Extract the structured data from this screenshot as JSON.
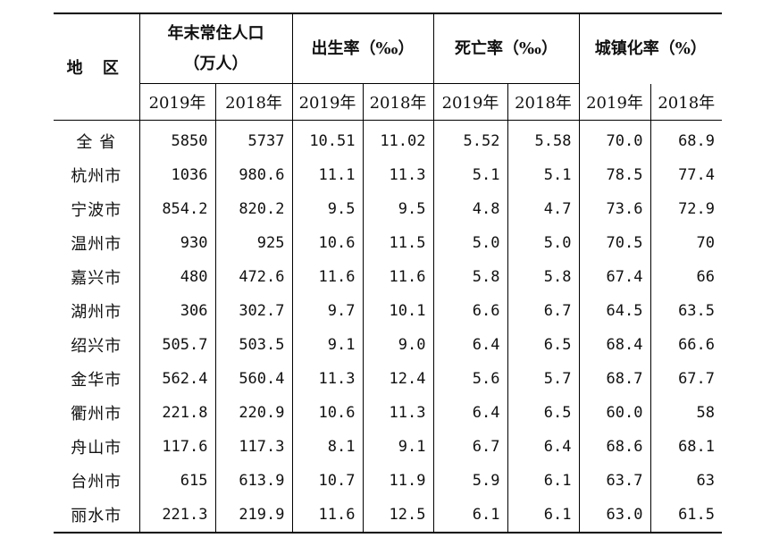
{
  "header": {
    "region": "地 区",
    "population_line1": "年末常住人口",
    "population_line2": "（万人）",
    "birth_rate": "出生率（‰）",
    "death_rate": "死亡率（‰）",
    "urbanization": "城镇化率（%）",
    "year_2019": "2019年",
    "year_2018": "2018年"
  },
  "rows": [
    {
      "region": "全  省",
      "pop2019": "5850",
      "pop2018": "5737",
      "birth2019": "10.51",
      "birth2018": "11.02",
      "death2019": "5.52",
      "death2018": "5.58",
      "urb2019": "70.0",
      "urb2018": "68.9"
    },
    {
      "region": "杭州市",
      "pop2019": "1036",
      "pop2018": "980.6",
      "birth2019": "11.1",
      "birth2018": "11.3",
      "death2019": "5.1",
      "death2018": "5.1",
      "urb2019": "78.5",
      "urb2018": "77.4"
    },
    {
      "region": "宁波市",
      "pop2019": "854.2",
      "pop2018": "820.2",
      "birth2019": "9.5",
      "birth2018": "9.5",
      "death2019": "4.8",
      "death2018": "4.7",
      "urb2019": "73.6",
      "urb2018": "72.9"
    },
    {
      "region": "温州市",
      "pop2019": "930",
      "pop2018": "925",
      "birth2019": "10.6",
      "birth2018": "11.5",
      "death2019": "5.0",
      "death2018": "5.0",
      "urb2019": "70.5",
      "urb2018": "70"
    },
    {
      "region": "嘉兴市",
      "pop2019": "480",
      "pop2018": "472.6",
      "birth2019": "11.6",
      "birth2018": "11.6",
      "death2019": "5.8",
      "death2018": "5.8",
      "urb2019": "67.4",
      "urb2018": "66"
    },
    {
      "region": "湖州市",
      "pop2019": "306",
      "pop2018": "302.7",
      "birth2019": "9.7",
      "birth2018": "10.1",
      "death2019": "6.6",
      "death2018": "6.7",
      "urb2019": "64.5",
      "urb2018": "63.5"
    },
    {
      "region": "绍兴市",
      "pop2019": "505.7",
      "pop2018": "503.5",
      "birth2019": "9.1",
      "birth2018": "9.0",
      "death2019": "6.4",
      "death2018": "6.5",
      "urb2019": "68.4",
      "urb2018": "66.6"
    },
    {
      "region": "金华市",
      "pop2019": "562.4",
      "pop2018": "560.4",
      "birth2019": "11.3",
      "birth2018": "12.4",
      "death2019": "5.6",
      "death2018": "5.7",
      "urb2019": "68.7",
      "urb2018": "67.7"
    },
    {
      "region": "衢州市",
      "pop2019": "221.8",
      "pop2018": "220.9",
      "birth2019": "10.6",
      "birth2018": "11.3",
      "death2019": "6.4",
      "death2018": "6.5",
      "urb2019": "60.0",
      "urb2018": "58"
    },
    {
      "region": "舟山市",
      "pop2019": "117.6",
      "pop2018": "117.3",
      "birth2019": "8.1",
      "birth2018": "9.1",
      "death2019": "6.7",
      "death2018": "6.4",
      "urb2019": "68.6",
      "urb2018": "68.1"
    },
    {
      "region": "台州市",
      "pop2019": "615",
      "pop2018": "613.9",
      "birth2019": "10.7",
      "birth2018": "11.9",
      "death2019": "5.9",
      "death2018": "6.1",
      "urb2019": "63.7",
      "urb2018": "63"
    },
    {
      "region": "丽水市",
      "pop2019": "221.3",
      "pop2018": "219.9",
      "birth2019": "11.6",
      "birth2018": "12.5",
      "death2019": "6.1",
      "death2018": "6.1",
      "urb2019": "63.0",
      "urb2018": "61.5"
    }
  ]
}
